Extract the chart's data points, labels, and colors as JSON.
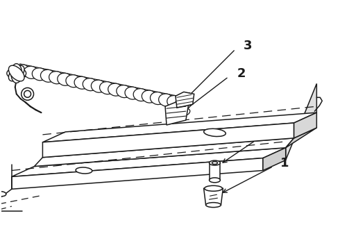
{
  "bg_color": "#ffffff",
  "line_color": "#1a1a1a",
  "label_fontsize": 13,
  "fig_width": 4.9,
  "fig_height": 3.6,
  "dpi": 100
}
